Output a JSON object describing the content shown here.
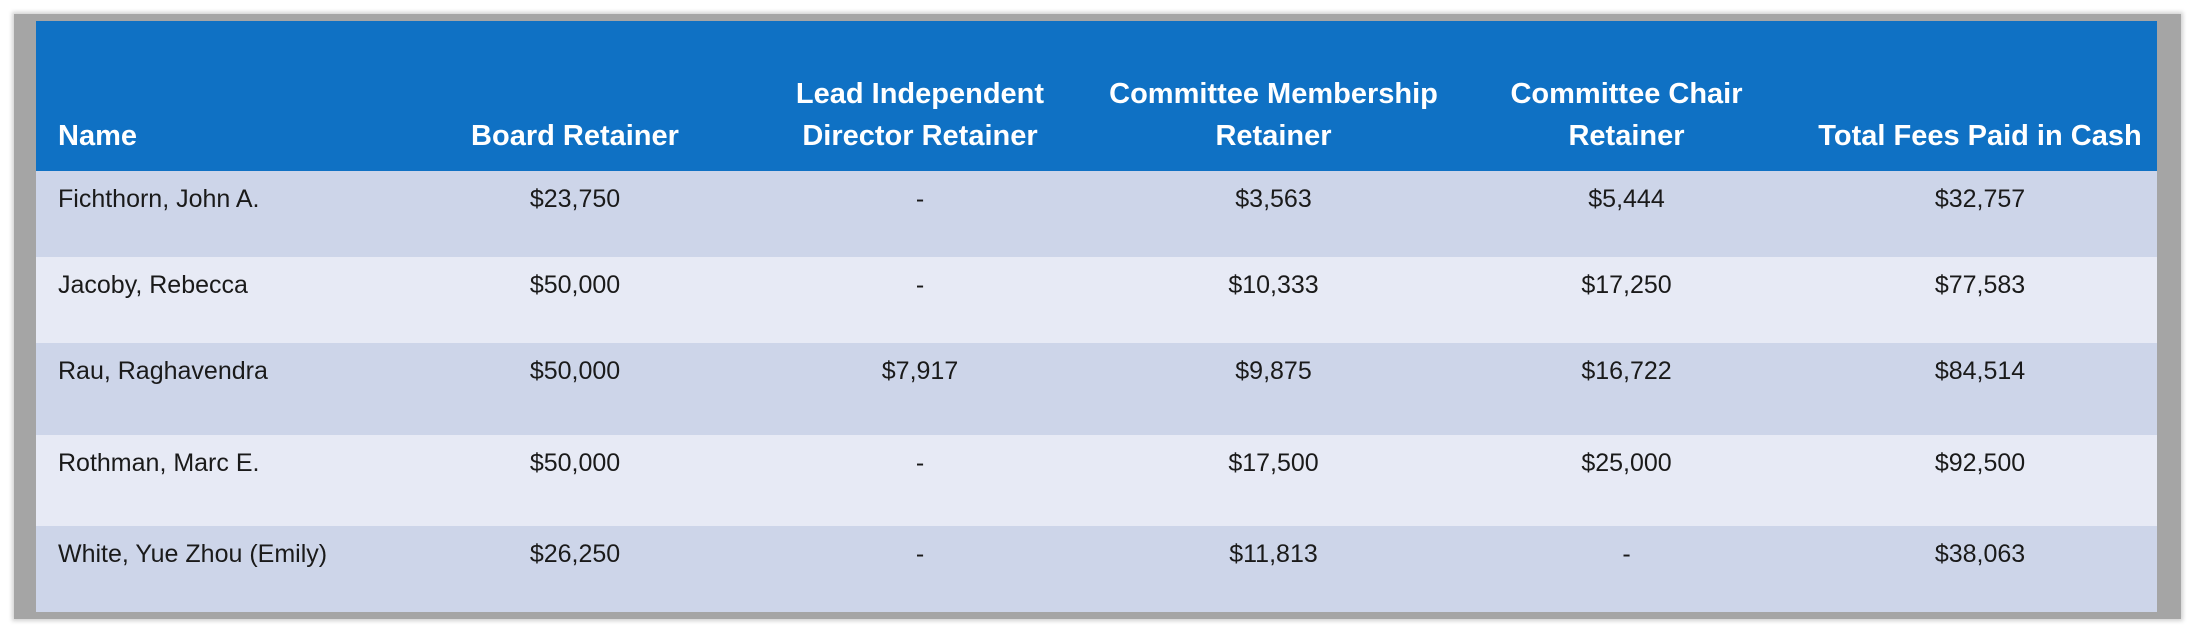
{
  "table": {
    "headers": [
      "Name",
      "Board Retainer",
      "Lead Independent Director Retainer",
      "Committee Membership Retainer",
      "Committee Chair Retainer",
      "Total Fees Paid in Cash"
    ],
    "rows": [
      [
        "Fichthorn, John A.",
        "$23,750",
        "-",
        "$3,563",
        "$5,444",
        "$32,757"
      ],
      [
        "Jacoby, Rebecca",
        "$50,000",
        "-",
        "$10,333",
        "$17,250",
        "$77,583"
      ],
      [
        "Rau, Raghavendra",
        "$50,000",
        "$7,917",
        "$9,875",
        "$16,722",
        "$84,514"
      ],
      [
        "Rothman, Marc E.",
        "$50,000",
        "-",
        "$17,500",
        "$25,000",
        "$92,500"
      ],
      [
        "White, Yue Zhou (Emily)",
        "$26,250",
        "-",
        "$11,813",
        "-",
        "$38,063"
      ]
    ]
  },
  "colors": {
    "header_bg": "#0f71c4",
    "row_dark": "#cdd5e9",
    "row_light": "#e7eaf5",
    "frame": "#a5a5a5"
  }
}
